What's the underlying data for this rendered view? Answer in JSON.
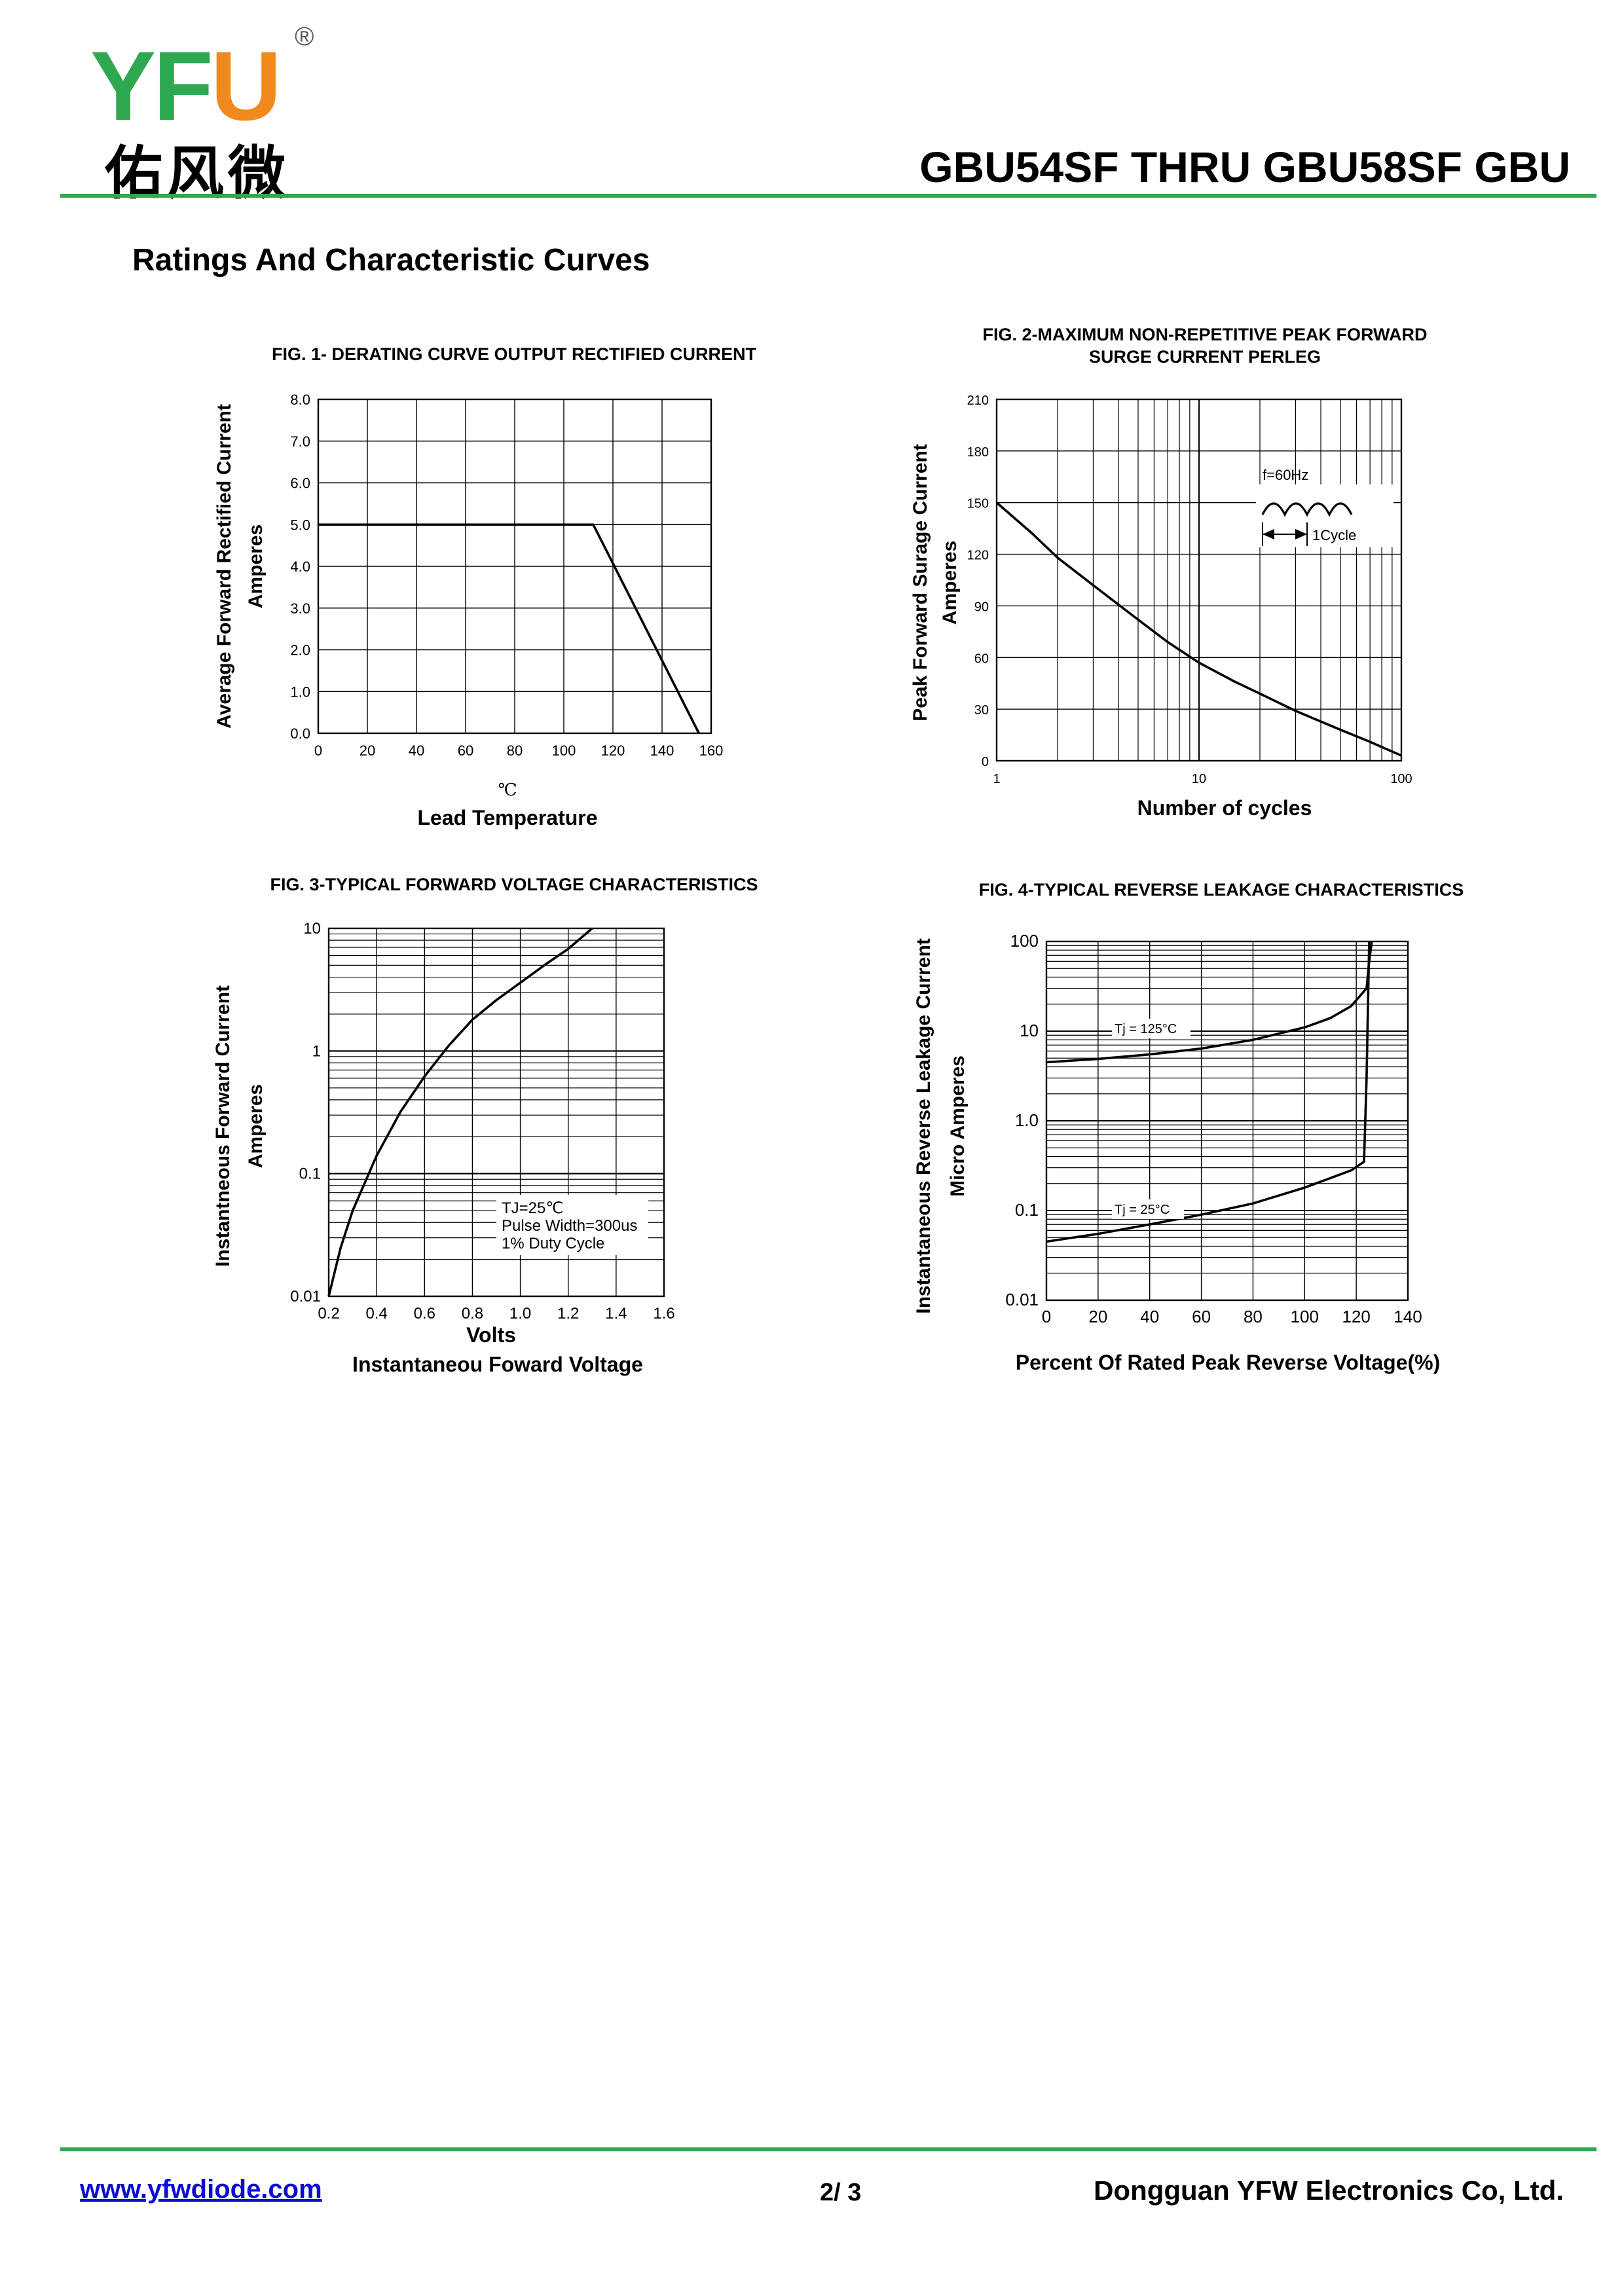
{
  "header": {
    "logo": {
      "letter_y": "Y",
      "letter_f": "F",
      "letter_u": "U",
      "registered": "®",
      "chinese_name": "佑风微"
    },
    "title": "GBU54SF THRU GBU58SF GBU"
  },
  "section_heading": "Ratings And  Characteristic Curves",
  "colors": {
    "brand_green": "#2fa84f",
    "brand_orange": "#f08a1c",
    "link_blue": "#0b0bd6"
  },
  "chart_data": [
    {
      "id": "fig1",
      "type": "line",
      "title": "FIG. 1- DERATING CURVE OUTPUT RECTIFIED CURRENT",
      "xlabel": "Lead Temperature",
      "xunit": "℃",
      "ylabel": "Average Forward Rectified Current",
      "ylabel2": "Amperes",
      "xlim": [
        0,
        160
      ],
      "ylim": [
        0,
        8
      ],
      "xticks": [
        "0",
        "20",
        "40",
        "60",
        "80",
        "100",
        "120",
        "140",
        "160"
      ],
      "yticks": [
        "0.0",
        "1.0",
        "2.0",
        "3.0",
        "4.0",
        "5.0",
        "6.0",
        "7.0",
        "8.0"
      ],
      "grid": true,
      "series": [
        {
          "name": "derating",
          "x": [
            0,
            112,
            155
          ],
          "y": [
            5.0,
            5.0,
            0.0
          ]
        }
      ]
    },
    {
      "id": "fig2",
      "type": "line",
      "title": "FIG. 2-MAXIMUM NON-REPETITIVE PEAK FORWARD",
      "title_line2": "SURGE CURRENT PERLEG",
      "xlabel": "Number of cycles",
      "ylabel": "Peak Forward Surage Current",
      "ylabel2": "Amperes",
      "xscale": "log",
      "xlim": [
        1,
        100
      ],
      "ylim": [
        0,
        210
      ],
      "xticks": [
        "1",
        "10",
        "100"
      ],
      "yticks": [
        "0",
        "30",
        "60",
        "90",
        "120",
        "150",
        "180",
        "210"
      ],
      "grid": true,
      "annotations": {
        "frequency": "f=60Hz",
        "cycle": "1Cycle"
      },
      "series": [
        {
          "name": "surge",
          "x": [
            1,
            1.5,
            2,
            3,
            5,
            7,
            10,
            15,
            20,
            30,
            50,
            70,
            100
          ],
          "y": [
            150,
            132,
            118,
            102,
            82,
            69,
            57,
            46,
            39,
            29,
            18,
            11,
            3
          ]
        }
      ]
    },
    {
      "id": "fig3",
      "type": "line",
      "title": "FIG. 3-TYPICAL FORWARD VOLTAGE CHARACTERISTICS",
      "xlabel": "Volts",
      "xlabel2": "Instantaneou Foward Voltage",
      "ylabel": "Instantneous Forward Current",
      "ylabel2": "Amperes",
      "yscale": "log",
      "xlim": [
        0.2,
        1.6
      ],
      "ylim": [
        0.01,
        10
      ],
      "xticks": [
        "0.2",
        "0.4",
        "0.6",
        "0.8",
        "1.0",
        "1.2",
        "1.4",
        "1.6"
      ],
      "yticks": [
        "0.01",
        "0.1",
        "1",
        "10"
      ],
      "grid": true,
      "legend": {
        "line1": "TJ=25℃",
        "line2": "Pulse Width=300us",
        "line3": "1% Duty Cycle"
      },
      "series": [
        {
          "name": "IF",
          "x": [
            0.2,
            0.25,
            0.3,
            0.4,
            0.5,
            0.6,
            0.7,
            0.8,
            0.9,
            1.0,
            1.1,
            1.2,
            1.3
          ],
          "y": [
            0.01,
            0.025,
            0.05,
            0.14,
            0.32,
            0.62,
            1.1,
            1.8,
            2.6,
            3.6,
            5.0,
            6.8,
            10
          ]
        }
      ]
    },
    {
      "id": "fig4",
      "type": "line",
      "title": "FIG. 4-TYPICAL REVERSE LEAKAGE CHARACTERISTICS",
      "xlabel": "Percent Of Rated Peak Reverse Voltage(%)",
      "ylabel": "Instantaneous Reverse Leakage Current",
      "ylabel2": "Micro Amperes",
      "yscale": "log",
      "xlim": [
        0,
        140
      ],
      "ylim": [
        0.01,
        100
      ],
      "xticks": [
        "0",
        "20",
        "40",
        "60",
        "80",
        "100",
        "120",
        "140"
      ],
      "yticks": [
        "0.01",
        "0.1",
        "1.0",
        "10",
        "100"
      ],
      "grid": true,
      "series": [
        {
          "name": "Tj = 125°C",
          "x": [
            0,
            20,
            40,
            60,
            80,
            100,
            110,
            118,
            124,
            125,
            126
          ],
          "y": [
            4.5,
            4.9,
            5.5,
            6.4,
            8.0,
            11.0,
            14.0,
            19.0,
            30.0,
            60.0,
            100
          ]
        },
        {
          "name": "Tj = 25°C",
          "x": [
            0,
            20,
            40,
            60,
            80,
            100,
            110,
            118,
            123,
            124,
            125
          ],
          "y": [
            0.045,
            0.055,
            0.07,
            0.09,
            0.12,
            0.18,
            0.23,
            0.28,
            0.35,
            3.0,
            100
          ]
        }
      ]
    }
  ],
  "footer": {
    "url": "www.yfwdiode.com",
    "page": "2/ 3",
    "company": "Dongguan YFW Electronics Co, Ltd."
  }
}
